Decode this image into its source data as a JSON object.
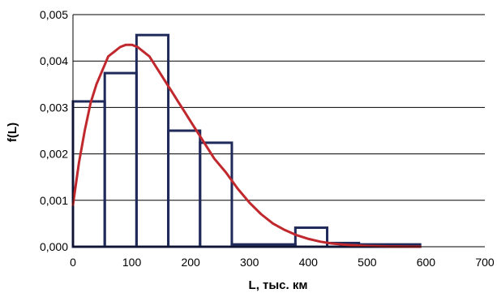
{
  "chart_data": {
    "type": "bar",
    "subtype": "histogram-with-density-curve",
    "title": "",
    "xlabel": "L, тыс. км",
    "ylabel": "f(L)",
    "xlim": [
      0,
      700
    ],
    "ylim": [
      0,
      0.005
    ],
    "x_ticks": [
      0,
      100,
      200,
      300,
      400,
      500,
      600,
      700
    ],
    "x_tick_labels": [
      "0",
      "100",
      "200",
      "300",
      "400",
      "500",
      "600",
      "700"
    ],
    "y_ticks": [
      0,
      0.001,
      0.002,
      0.003,
      0.004,
      0.005
    ],
    "y_tick_labels": [
      "0,000",
      "0,001",
      "0,002",
      "0,003",
      "0,004",
      "0,005"
    ],
    "grid": "horizontal",
    "legend": "none",
    "series": [
      {
        "type": "histogram",
        "color": "#1f2a5a",
        "bins": [
          {
            "x0": 0,
            "x1": 54,
            "value": 0.00313
          },
          {
            "x0": 54,
            "x1": 108,
            "value": 0.00374
          },
          {
            "x0": 108,
            "x1": 162,
            "value": 0.00456
          },
          {
            "x0": 162,
            "x1": 216,
            "value": 0.0025
          },
          {
            "x0": 216,
            "x1": 270,
            "value": 0.00224
          },
          {
            "x0": 270,
            "x1": 378,
            "value": 5e-05
          },
          {
            "x0": 378,
            "x1": 432,
            "value": 0.00041
          },
          {
            "x0": 432,
            "x1": 486,
            "value": 8e-05
          },
          {
            "x0": 486,
            "x1": 590,
            "value": 5e-05
          }
        ]
      },
      {
        "type": "line",
        "color": "#c0282d",
        "x": [
          0,
          10,
          20,
          30,
          40,
          50,
          60,
          70,
          80,
          90,
          100,
          110,
          120,
          130,
          140,
          150,
          160,
          170,
          180,
          190,
          200,
          220,
          240,
          260,
          280,
          300,
          320,
          340,
          360,
          380,
          400,
          420,
          440,
          460,
          480,
          500,
          520,
          540,
          560,
          590
        ],
        "y": [
          0.0009,
          0.0018,
          0.0025,
          0.0031,
          0.0035,
          0.0038,
          0.0041,
          0.0042,
          0.0043,
          0.00435,
          0.00435,
          0.0043,
          0.0042,
          0.0041,
          0.0039,
          0.0037,
          0.0035,
          0.0033,
          0.0031,
          0.0029,
          0.0027,
          0.0023,
          0.0019,
          0.0016,
          0.00125,
          0.00095,
          0.0007,
          0.0005,
          0.00036,
          0.00025,
          0.00017,
          0.00011,
          7e-05,
          4.5e-05,
          3e-05,
          1.8e-05,
          1e-05,
          6e-06,
          3e-06,
          1e-06
        ]
      }
    ]
  }
}
